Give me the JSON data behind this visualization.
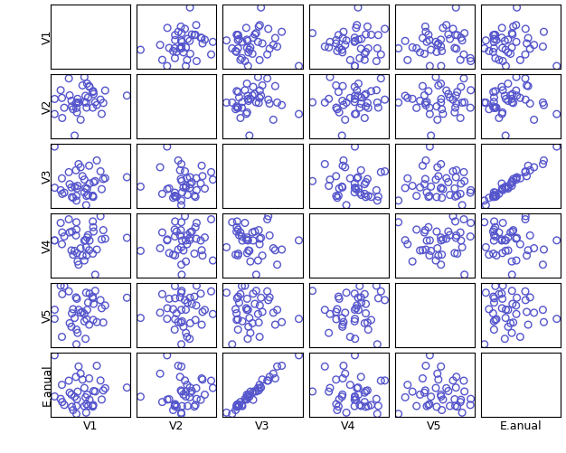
{
  "variables": [
    "V1",
    "V2",
    "V3",
    "V4",
    "V5",
    "E.anual"
  ],
  "n_vars": 6,
  "n_points": 40,
  "marker_color": "#5555cc",
  "marker_size": 5.5,
  "marker_facecolor": "none",
  "marker_linewidth": 1.0,
  "background_color": "#ffffff",
  "grid_color": "#000000",
  "figsize": [
    6.26,
    5.01
  ],
  "dpi": 100,
  "seed": 12,
  "corr_strength": 0.98,
  "label_fontsize": 9
}
